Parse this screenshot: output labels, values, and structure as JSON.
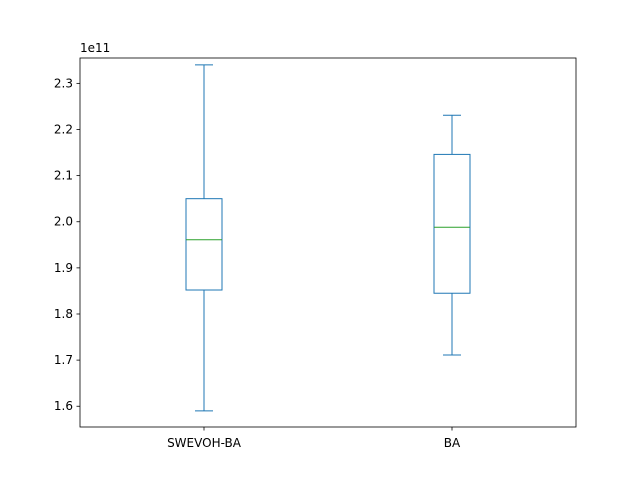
{
  "chart_data": {
    "type": "box",
    "title": "",
    "xlabel": "",
    "ylabel": "",
    "y_offset_label": "1e11",
    "y_scale_factor": 100000000000.0,
    "ylim": [
      1.555,
      2.355
    ],
    "yticks": [
      1.6,
      1.7,
      1.8,
      1.9,
      2.0,
      2.1,
      2.2,
      2.3
    ],
    "ytick_labels": [
      "1.6",
      "1.7",
      "1.8",
      "1.9",
      "2.0",
      "2.1",
      "2.2",
      "2.3"
    ],
    "grid": false,
    "categories": [
      "SWEVOH-BA",
      "BA"
    ],
    "boxes": [
      {
        "category": "SWEVOH-BA",
        "whisker_low": 1.59,
        "q1": 1.852,
        "median": 1.961,
        "q3": 2.05,
        "whisker_high": 2.34
      },
      {
        "category": "BA",
        "whisker_low": 1.711,
        "q1": 1.845,
        "median": 1.988,
        "q3": 2.146,
        "whisker_high": 2.231
      }
    ],
    "colors": {
      "box": "#1f77b4",
      "median": "#2ca02c",
      "axis": "#000000"
    }
  }
}
